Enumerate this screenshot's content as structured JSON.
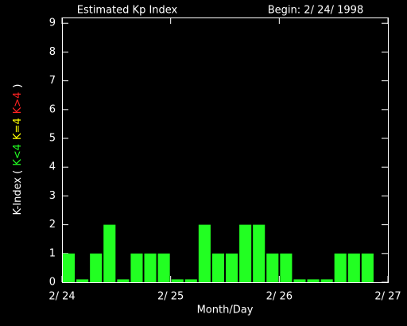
{
  "chart_data": {
    "type": "bar",
    "title": "Estimated Kp Index",
    "subtitle": "Begin: 2/ 24/ 1998",
    "xlabel": "Month/Day",
    "ylabel_parts": [
      {
        "text": "K-Index (",
        "color": "#ffffff"
      },
      {
        "text": "K<4",
        "color": "#22ff22"
      },
      {
        "text": "K=4",
        "color": "#ffff00"
      },
      {
        "text": "K>4",
        "color": "#ff2222"
      },
      {
        "text": ")",
        "color": "#ffffff"
      }
    ],
    "x": [
      0,
      0.125,
      0.25,
      0.375,
      0.5,
      0.625,
      0.75,
      0.875,
      1,
      1.125,
      1.25,
      1.375,
      1.5,
      1.625,
      1.75,
      1.875,
      2,
      2.125,
      2.25,
      2.375,
      2.5,
      2.625,
      2.75,
      2.875
    ],
    "values": [
      1,
      0.1,
      1,
      2,
      0.1,
      1,
      1,
      1,
      0.1,
      0.1,
      2,
      1,
      1,
      2,
      2,
      1,
      1,
      0.1,
      0.1,
      0.1,
      1,
      1,
      1,
      null
    ],
    "bar_width": 0.125,
    "color": "#22ff22",
    "xlim": [
      0,
      3
    ],
    "xticks": [
      {
        "value": 0,
        "label": "2/ 24"
      },
      {
        "value": 1,
        "label": "2/ 25"
      },
      {
        "value": 2,
        "label": "2/ 26"
      },
      {
        "value": 3,
        "label": "2/ 27"
      }
    ],
    "ylim": [
      0,
      9.2
    ],
    "yticks": [
      0,
      1,
      2,
      3,
      4,
      5,
      6,
      7,
      8,
      9
    ]
  }
}
